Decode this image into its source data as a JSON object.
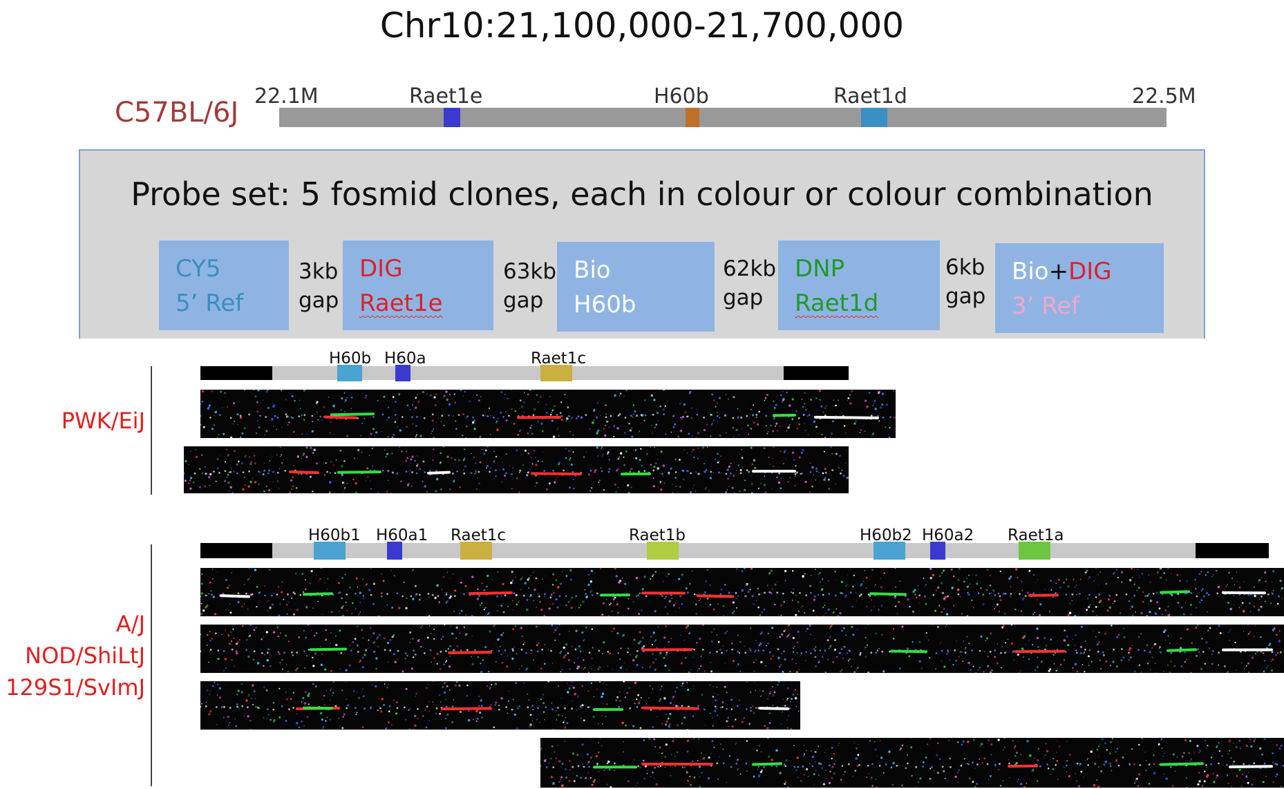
{
  "title": "Chr10:21,100,000-21,700,000",
  "reference": {
    "strain": "C57BL/6J",
    "start_label": "22.1M",
    "end_label": "22.5M",
    "genes": [
      {
        "name": "Raet1e",
        "color": "#3a3acf"
      },
      {
        "name": "H60b",
        "color": "#c0702a"
      },
      {
        "name": "Raet1d",
        "color": "#3b8fc4"
      }
    ]
  },
  "probe_set": {
    "title": "Probe set: 5 fosmid clones, each in colour or colour combination",
    "probes": [
      {
        "label": "CY5",
        "target": "5’ Ref",
        "label_color": "#3a8fbf",
        "target_color": "#3a8fbf"
      },
      {
        "label": "DIG",
        "target": "Raet1e",
        "label_color": "#e0202a",
        "target_color": "#e0202a"
      },
      {
        "label": "Bio",
        "target": "H60b",
        "label_color": "#ffffff",
        "target_color": "#ffffff"
      },
      {
        "label": "DNP",
        "target": "Raet1d",
        "label_color": "#1f9a2a",
        "target_color": "#1f9a2a"
      },
      {
        "label_a": "Bio",
        "label_plus": "+",
        "label_b": "DIG",
        "target": "3’ Ref",
        "target_color": "#f4a6c8"
      }
    ],
    "gaps": [
      {
        "size": "3kb",
        "word": "gap"
      },
      {
        "size": "63kb",
        "word": "gap"
      },
      {
        "size": "62kb",
        "word": "gap"
      },
      {
        "size": "6kb",
        "word": "gap"
      }
    ]
  },
  "groups": [
    {
      "strains": [
        "PWK/EiJ"
      ],
      "genes": [
        {
          "name": "H60b",
          "color": "#4aa3d0"
        },
        {
          "name": "H60a",
          "color": "#3a3acf"
        },
        {
          "name": "Raet1c",
          "color": "#c9b040"
        }
      ]
    },
    {
      "strains": [
        "A/J",
        "NOD/ShiLtJ",
        "129S1/SvImJ"
      ],
      "genes": [
        {
          "name": "H60b1",
          "color": "#4aa3d0"
        },
        {
          "name": "H60a1",
          "color": "#3a3acf"
        },
        {
          "name": "Raet1c",
          "color": "#c9b040"
        },
        {
          "name": "Raet1b",
          "color": "#b0cc40"
        },
        {
          "name": "H60b2",
          "color": "#4aa3d0"
        },
        {
          "name": "H60a2",
          "color": "#3a3acf"
        },
        {
          "name": "Raet1a",
          "color": "#6cc640"
        }
      ]
    }
  ]
}
